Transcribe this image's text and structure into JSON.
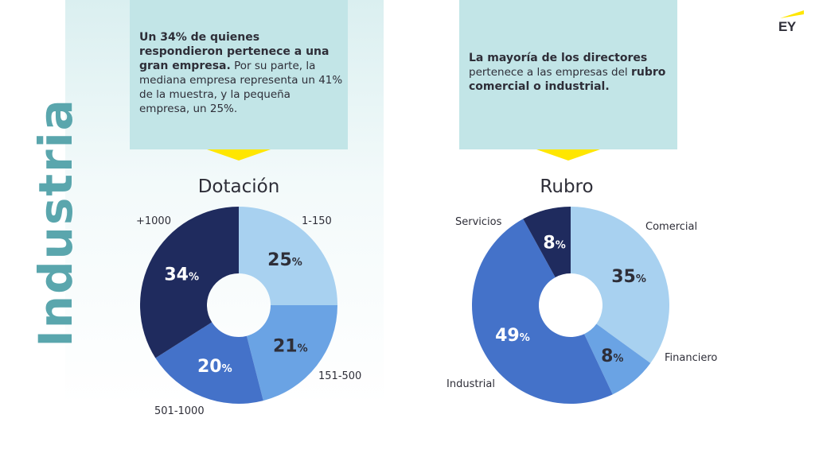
{
  "side_title": "Industria",
  "logo": {
    "text": "EY"
  },
  "callouts": [
    {
      "segments": [
        {
          "text": "Un 34% de quienes respondieron pertenece a una gran empresa.",
          "bold": true
        },
        {
          "text": " Por su parte, la mediana empresa representa un 41% de la muestra, y la pequeña empresa, un 25%.",
          "bold": false
        }
      ]
    },
    {
      "segments": [
        {
          "text": "La mayoría de los directores",
          "bold": true
        },
        {
          "text": " pertenece a las empresas del ",
          "bold": false
        },
        {
          "text": "rubro comercial o industrial.",
          "bold": true
        }
      ]
    }
  ],
  "colors": {
    "dark_navy": "#1f2b5e",
    "light_blue": "#a8d1f0",
    "mid_blue": "#6aa3e4",
    "royal_blue": "#4472c9",
    "callout_bg": "#c2e5e7",
    "accent_yellow": "#ffe600",
    "side_title": "#5aa6ad"
  },
  "chart_data": [
    {
      "type": "pie",
      "donut": true,
      "title": "Dotación",
      "slices": [
        {
          "label": "1-150",
          "value": 25,
          "color": "#a8d1f0",
          "text_color": "#2e2e38"
        },
        {
          "label": "151-500",
          "value": 21,
          "color": "#6aa3e4",
          "text_color": "#2e2e38"
        },
        {
          "label": "501-1000",
          "value": 20,
          "color": "#4472c9",
          "text_color": "#ffffff"
        },
        {
          "label": "+1000",
          "value": 34,
          "color": "#1f2b5e",
          "text_color": "#ffffff"
        }
      ],
      "value_suffix": "%"
    },
    {
      "type": "pie",
      "donut": true,
      "title": "Rubro",
      "slices": [
        {
          "label": "Comercial",
          "value": 35,
          "color": "#a8d1f0",
          "text_color": "#2e2e38"
        },
        {
          "label": "Financiero",
          "value": 8,
          "color": "#6aa3e4",
          "text_color": "#2e2e38"
        },
        {
          "label": "Industrial",
          "value": 49,
          "color": "#4472c9",
          "text_color": "#ffffff"
        },
        {
          "label": "Servicios",
          "value": 8,
          "color": "#1f2b5e",
          "text_color": "#ffffff"
        }
      ],
      "value_suffix": "%"
    }
  ]
}
